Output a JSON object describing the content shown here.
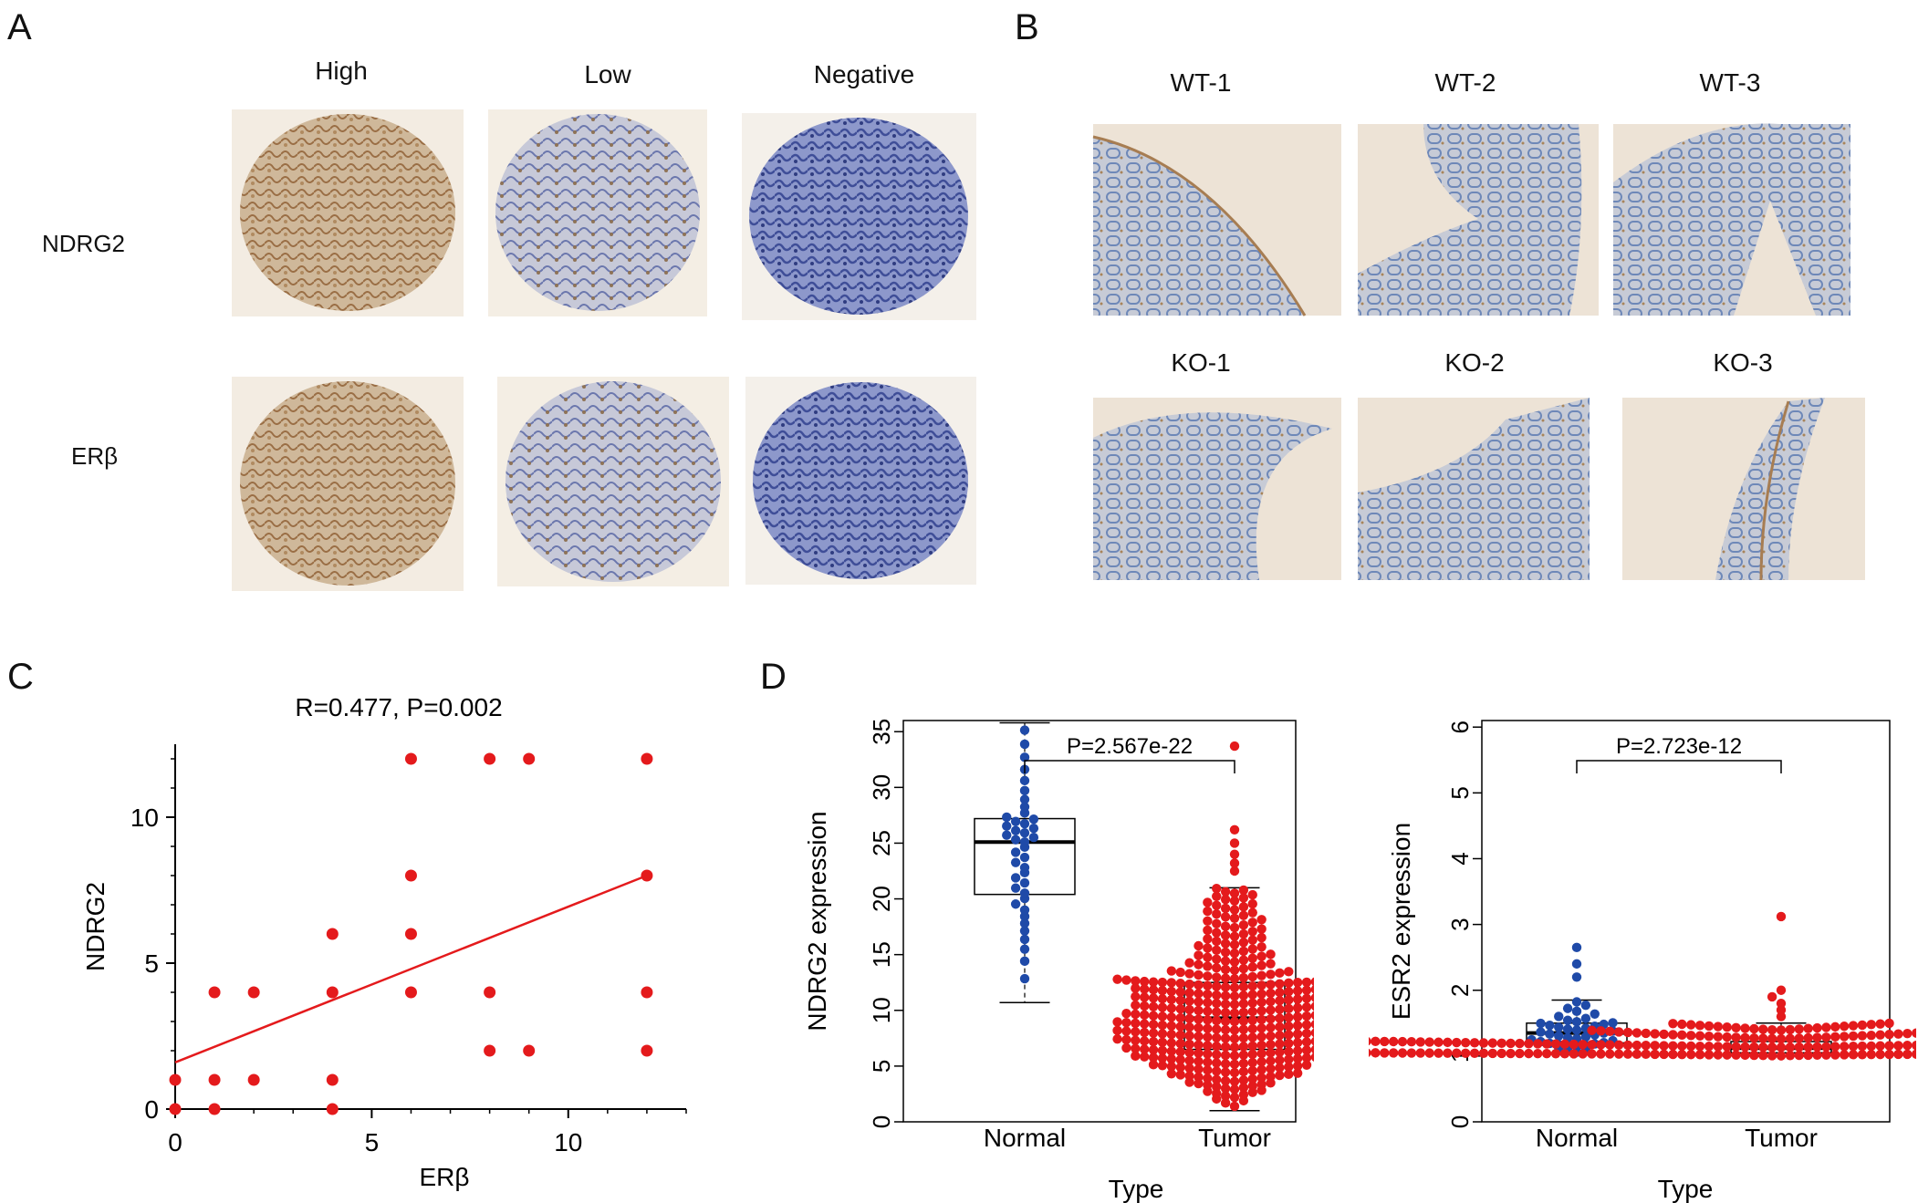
{
  "panels": {
    "A": {
      "label": "A",
      "columns": [
        "High",
        "Low",
        "Negative"
      ],
      "rows": [
        "NDRG2",
        "ERβ"
      ]
    },
    "B": {
      "label": "B",
      "wt_labels": [
        "WT-1",
        "WT-2",
        "WT-3"
      ],
      "ko_labels": [
        "KO-1",
        "KO-2",
        "KO-3"
      ]
    },
    "C": {
      "label": "C",
      "stat": "R=0.477, P=0.002"
    },
    "D": {
      "label": "D",
      "left_stat": "P=2.567e-22",
      "right_stat": "P=2.723e-12"
    }
  },
  "colors": {
    "red": "#e41a1c",
    "blue": "#1f4aa8",
    "stain_brown": "#b58b5c",
    "stain_blue": "#5c6fb8"
  },
  "chart_data": [
    {
      "id": "C",
      "type": "scatter",
      "title": "R=0.477, P=0.002",
      "xlabel": "ERβ",
      "ylabel": "NDRG2",
      "xlim": [
        0,
        13
      ],
      "ylim": [
        0,
        12.5
      ],
      "xticks": [
        0,
        5,
        10
      ],
      "yticks": [
        0,
        5,
        10
      ],
      "points": [
        [
          0,
          0
        ],
        [
          0,
          1
        ],
        [
          1,
          0
        ],
        [
          1,
          1
        ],
        [
          1,
          4
        ],
        [
          2,
          1
        ],
        [
          2,
          4
        ],
        [
          4,
          0
        ],
        [
          4,
          1
        ],
        [
          4,
          4
        ],
        [
          4,
          6
        ],
        [
          6,
          4
        ],
        [
          6,
          6
        ],
        [
          6,
          8
        ],
        [
          6,
          12
        ],
        [
          8,
          2
        ],
        [
          8,
          4
        ],
        [
          8,
          12
        ],
        [
          9,
          2
        ],
        [
          9,
          12
        ],
        [
          12,
          2
        ],
        [
          12,
          4
        ],
        [
          12,
          8
        ],
        [
          12,
          12
        ]
      ],
      "fit_line": [
        [
          0,
          1.6
        ],
        [
          12,
          8
        ]
      ],
      "color": "#e41a1c"
    },
    {
      "id": "D-left",
      "type": "box+beeswarm",
      "xlabel": "Type",
      "ylabel": "NDRG2 expression",
      "categories": [
        "Normal",
        "Tumor"
      ],
      "ylim": [
        0,
        36
      ],
      "yticks": [
        0,
        5,
        10,
        15,
        20,
        25,
        30,
        35
      ],
      "annotation": "P=2.567e-22",
      "boxes": [
        {
          "name": "Normal",
          "min": 10.7,
          "q1": 20.4,
          "median": 25.1,
          "q3": 27.2,
          "max": 35.8,
          "n": 41,
          "color": "#1f4aa8"
        },
        {
          "name": "Tumor",
          "min": 1.0,
          "q1": 6.5,
          "median": 9.3,
          "q3": 12.5,
          "max": 21.0,
          "outliers": [
            22.5,
            23.2,
            24.0,
            25.0,
            26.2,
            33.7
          ],
          "n": 380,
          "color": "#e41a1c"
        }
      ]
    },
    {
      "id": "D-right",
      "type": "box+beeswarm",
      "xlabel": "Type",
      "ylabel": "ESR2 expression",
      "categories": [
        "Normal",
        "Tumor"
      ],
      "ylim": [
        0,
        6.1
      ],
      "yticks": [
        0,
        1,
        2,
        3,
        4,
        5,
        6
      ],
      "annotation": "P=2.723e-12",
      "boxes": [
        {
          "name": "Normal",
          "min": 1.02,
          "q1": 1.2,
          "median": 1.35,
          "q3": 1.5,
          "max": 1.85,
          "outliers": [
            2.2,
            2.4,
            2.65
          ],
          "n": 41,
          "color": "#1f4aa8"
        },
        {
          "name": "Tumor",
          "min": 1.0,
          "q1": 1.05,
          "median": 1.12,
          "q3": 1.22,
          "max": 1.5,
          "outliers": [
            1.6,
            1.7,
            1.8,
            1.9,
            2.0,
            3.12
          ],
          "n": 380,
          "color": "#e41a1c"
        }
      ]
    }
  ]
}
